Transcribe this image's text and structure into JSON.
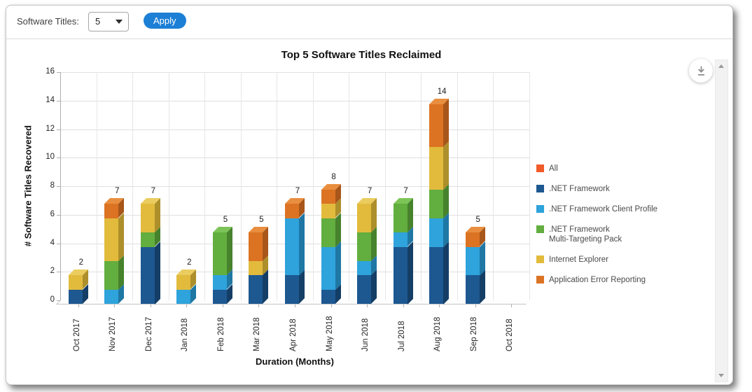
{
  "controls": {
    "label": "Software Titles:",
    "dropdown_value": "5",
    "apply_label": "Apply"
  },
  "chart": {
    "title": "Top 5 Software Titles Reclaimed",
    "x_title": "Duration (Months)",
    "y_title": "# Software Titles Recovered"
  },
  "legend": {
    "items": [
      {
        "label": "All",
        "color": "#F15A29"
      },
      {
        "label": ".NET Framework",
        "color": "#1D5891"
      },
      {
        "label": ".NET Framework Client Profile",
        "color": "#2EA3DC"
      },
      {
        "label": ".NET Framework\nMulti-Targeting Pack",
        "color": "#62AE3F"
      },
      {
        "label": "Internet Explorer",
        "color": "#E2BB3D"
      },
      {
        "label": "Application Error Reporting",
        "color": "#DC7323"
      }
    ]
  },
  "chart_data": {
    "type": "bar",
    "subtype": "stacked-3d-column",
    "title": "Top 5 Software Titles Reclaimed",
    "xlabel": "Duration (Months)",
    "ylabel": "# Software Titles Recovered",
    "ylim": [
      0,
      16
    ],
    "y_ticks": [
      0,
      2,
      4,
      6,
      8,
      10,
      12,
      14,
      16
    ],
    "grid": true,
    "legend_position": "right",
    "categories": [
      "Oct 2017",
      "Nov 2017",
      "Dec 2017",
      "Jan 2018",
      "Feb 2018",
      "Mar 2018",
      "Apr 2018",
      "May 2018",
      "Jun 2018",
      "Jul 2018",
      "Aug 2018",
      "Sep 2018",
      "Oct 2018"
    ],
    "series": [
      {
        "name": ".NET Framework",
        "front": "#1D5891",
        "side": "#143E66",
        "top": "#2F6BAD",
        "values": [
          1,
          0,
          4,
          0,
          1,
          2,
          2,
          1,
          2,
          4,
          4,
          2,
          0
        ]
      },
      {
        "name": ".NET Framework Client Profile",
        "front": "#2EA3DC",
        "side": "#1F77A4",
        "top": "#55B8E6",
        "values": [
          0,
          1,
          0,
          1,
          1,
          0,
          4,
          3,
          1,
          1,
          2,
          2,
          0
        ]
      },
      {
        "name": ".NET Framework Multi-Targeting Pack",
        "front": "#62AE3F",
        "side": "#47822D",
        "top": "#7CC457",
        "values": [
          0,
          2,
          1,
          0,
          3,
          0,
          0,
          2,
          2,
          2,
          2,
          0,
          0
        ]
      },
      {
        "name": "Internet Explorer",
        "front": "#E2BB3D",
        "side": "#AD8F2B",
        "top": "#EBCC5E",
        "values": [
          1,
          3,
          2,
          1,
          0,
          1,
          0,
          1,
          2,
          0,
          3,
          0,
          0
        ]
      },
      {
        "name": "Application Error Reporting",
        "front": "#DC7323",
        "side": "#A8561A",
        "top": "#E98E3F",
        "values": [
          0,
          1,
          0,
          0,
          0,
          2,
          1,
          1,
          0,
          0,
          3,
          1,
          0
        ]
      }
    ],
    "totals": [
      2,
      7,
      7,
      2,
      5,
      5,
      7,
      8,
      7,
      7,
      14,
      5,
      0
    ]
  }
}
